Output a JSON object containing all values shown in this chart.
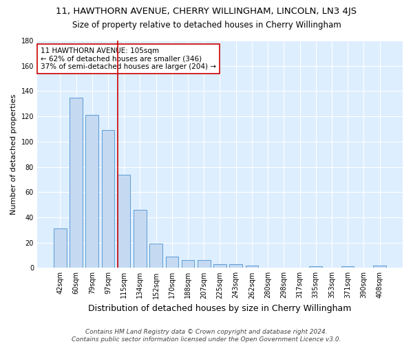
{
  "title": "11, HAWTHORN AVENUE, CHERRY WILLINGHAM, LINCOLN, LN3 4JS",
  "subtitle": "Size of property relative to detached houses in Cherry Willingham",
  "xlabel": "Distribution of detached houses by size in Cherry Willingham",
  "ylabel": "Number of detached properties",
  "categories": [
    "42sqm",
    "60sqm",
    "79sqm",
    "97sqm",
    "115sqm",
    "134sqm",
    "152sqm",
    "170sqm",
    "188sqm",
    "207sqm",
    "225sqm",
    "243sqm",
    "262sqm",
    "280sqm",
    "298sqm",
    "317sqm",
    "335sqm",
    "353sqm",
    "371sqm",
    "390sqm",
    "408sqm"
  ],
  "values": [
    31,
    135,
    121,
    109,
    74,
    46,
    19,
    9,
    6,
    6,
    3,
    3,
    2,
    0,
    0,
    0,
    1,
    0,
    1,
    0,
    2
  ],
  "bar_color": "#c5d9f1",
  "bar_edge_color": "#5b9bd5",
  "background_color": "#ffffff",
  "plot_bg_color": "#ddeeff",
  "grid_color": "#ffffff",
  "vline_index": 3.6,
  "vline_color": "#cc0000",
  "annotation_line1": "11 HAWTHORN AVENUE: 105sqm",
  "annotation_line2": "← 62% of detached houses are smaller (346)",
  "annotation_line3": "37% of semi-detached houses are larger (204) →",
  "annotation_box_color": "#ffffff",
  "annotation_box_edge": "#cc0000",
  "ylim": [
    0,
    180
  ],
  "yticks": [
    0,
    20,
    40,
    60,
    80,
    100,
    120,
    140,
    160,
    180
  ],
  "footer_line1": "Contains HM Land Registry data © Crown copyright and database right 2024.",
  "footer_line2": "Contains public sector information licensed under the Open Government Licence v3.0.",
  "title_fontsize": 9.5,
  "subtitle_fontsize": 8.5,
  "xlabel_fontsize": 9,
  "ylabel_fontsize": 8,
  "tick_fontsize": 7,
  "annotation_fontsize": 7.5,
  "footer_fontsize": 6.5
}
